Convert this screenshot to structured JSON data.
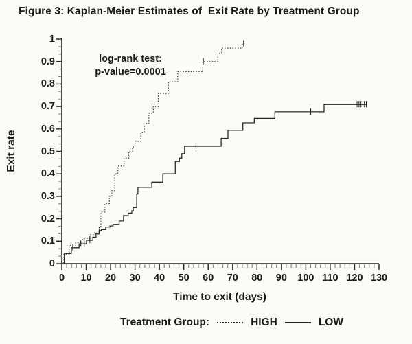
{
  "figure_title": "Figure 3: Kaplan-Meier Estimates of  Exit Rate by Treatment Group",
  "annotation": {
    "line1": "log-rank test:",
    "line2": "p-value=0.0001"
  },
  "legend": {
    "label": "Treatment Group:",
    "entries": [
      {
        "name": "HIGH",
        "style": "dotted"
      },
      {
        "name": "LOW",
        "style": "solid"
      }
    ]
  },
  "colors": {
    "background": "#fcfbf8",
    "axis": "#222222",
    "minor_tick": "#777777",
    "curve_high": "#333333",
    "curve_low": "#2b2b2b",
    "text": "#1b1b1b"
  },
  "chart_data": {
    "type": "line",
    "subtype": "kaplan-meier-step",
    "title": "Figure 3: Kaplan-Meier Estimates of  Exit Rate by Treatment Group",
    "xlabel": "Time to exit (days)",
    "ylabel": "Exit rate",
    "xlim": [
      0,
      130
    ],
    "ylim": [
      0,
      1
    ],
    "grid": false,
    "legend_position": "bottom",
    "annotation_text": [
      "log-rank test:",
      "p-value=0.0001"
    ],
    "x_major_ticks": [
      0,
      10,
      20,
      30,
      40,
      50,
      60,
      70,
      80,
      90,
      100,
      110,
      120,
      130
    ],
    "x_tick_labels": [
      "0",
      "10",
      "20",
      "30",
      "40",
      "50",
      "60",
      "70",
      "80",
      "90",
      "100",
      "110",
      "120",
      "130"
    ],
    "x_minor_step": 2,
    "y_major_ticks": [
      0,
      0.1,
      0.2,
      0.3,
      0.4,
      0.5,
      0.6,
      0.7,
      0.8,
      0.9,
      1
    ],
    "y_tick_labels": [
      "0",
      "0.1",
      "0.2",
      "0.3",
      "0.4",
      "0.5",
      "0.6",
      "0.7",
      "0.8",
      "0.9",
      "1"
    ],
    "y_minors_between_majors": 2,
    "series": [
      {
        "name": "HIGH",
        "style": "dotted",
        "points": [
          [
            0,
            0
          ],
          [
            0.8,
            0.04
          ],
          [
            3,
            0.08
          ],
          [
            5.7,
            0.093
          ],
          [
            8.5,
            0.111
          ],
          [
            11.5,
            0.129
          ],
          [
            13.3,
            0.145
          ],
          [
            15.3,
            0.165
          ],
          [
            16,
            0.23
          ],
          [
            17.7,
            0.268
          ],
          [
            19.5,
            0.3
          ],
          [
            20.5,
            0.325
          ],
          [
            21.7,
            0.4
          ],
          [
            23,
            0.435
          ],
          [
            25.5,
            0.47
          ],
          [
            27.5,
            0.5
          ],
          [
            29,
            0.52
          ],
          [
            30,
            0.545
          ],
          [
            32.4,
            0.585
          ],
          [
            33.8,
            0.625
          ],
          [
            35.7,
            0.67
          ],
          [
            37.5,
            0.7
          ],
          [
            39.5,
            0.758
          ],
          [
            43.7,
            0.81
          ],
          [
            47.5,
            0.855
          ],
          [
            57.8,
            0.9
          ],
          [
            64,
            0.937
          ],
          [
            65.5,
            0.96
          ],
          [
            74,
            0.98
          ]
        ],
        "end_day": 75,
        "censor_ticks": [
          [
            37,
            0.7
          ],
          [
            58,
            0.9
          ],
          [
            74.5,
            0.98
          ]
        ]
      },
      {
        "name": "LOW",
        "style": "solid",
        "points": [
          [
            0,
            0
          ],
          [
            1,
            0.045
          ],
          [
            3.9,
            0.071
          ],
          [
            7.1,
            0.088
          ],
          [
            10.1,
            0.104
          ],
          [
            12.7,
            0.118
          ],
          [
            14,
            0.132
          ],
          [
            15.3,
            0.147
          ],
          [
            16.2,
            0.152
          ],
          [
            18,
            0.163
          ],
          [
            19.7,
            0.168
          ],
          [
            21,
            0.175
          ],
          [
            23.5,
            0.19
          ],
          [
            25.3,
            0.214
          ],
          [
            27.2,
            0.225
          ],
          [
            28.7,
            0.235
          ],
          [
            29.3,
            0.25
          ],
          [
            30.7,
            0.31
          ],
          [
            31.2,
            0.34
          ],
          [
            36.9,
            0.363
          ],
          [
            41.4,
            0.4
          ],
          [
            46.5,
            0.455
          ],
          [
            48.2,
            0.47
          ],
          [
            49.2,
            0.49
          ],
          [
            50.3,
            0.523
          ],
          [
            65.3,
            0.558
          ],
          [
            68.1,
            0.594
          ],
          [
            74.2,
            0.627
          ],
          [
            78.9,
            0.647
          ],
          [
            87.3,
            0.676
          ],
          [
            107.5,
            0.709
          ]
        ],
        "end_day": 125,
        "censor_ticks": [
          [
            4.5,
            0.071
          ],
          [
            7.8,
            0.088
          ],
          [
            9.2,
            0.088
          ],
          [
            11.5,
            0.104
          ],
          [
            15.5,
            0.147
          ],
          [
            55,
            0.523
          ],
          [
            102,
            0.676
          ],
          [
            121,
            0.709
          ],
          [
            121.8,
            0.709
          ],
          [
            122.6,
            0.709
          ],
          [
            124,
            0.709
          ],
          [
            124.8,
            0.709
          ]
        ]
      }
    ]
  }
}
